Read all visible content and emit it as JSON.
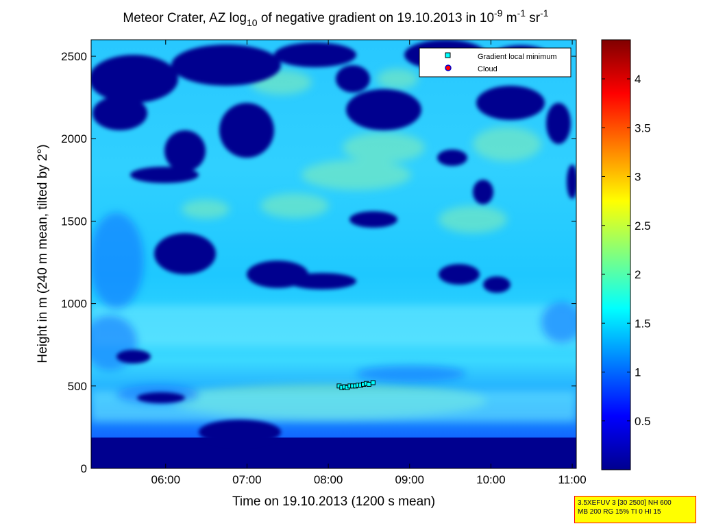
{
  "chart_data": {
    "type": "heatmap",
    "title": {
      "prefix": "Meteor Crater, AZ log",
      "subscript": "10",
      "middle": " of negative gradient on 19.10.2013 in 10",
      "sup1": "-9",
      "mid2": " m",
      "sup2": "-1",
      "mid3": " sr",
      "sup3": "-1"
    },
    "xlabel": "Time on 19.10.2013 (1200 s mean)",
    "ylabel": "Height in m (240 m mean, tilted by 2°)",
    "xlim": [
      "05:05",
      "11:03"
    ],
    "ylim": [
      0,
      2600
    ],
    "xticks": [
      "06:00",
      "07:00",
      "08:00",
      "09:00",
      "10:00",
      "11:00"
    ],
    "yticks": [
      0,
      500,
      1000,
      1500,
      2000,
      2500
    ],
    "colorbar": {
      "range": [
        0,
        4.4
      ],
      "ticks": [
        0.5,
        1,
        1.5,
        2,
        2.5,
        3,
        3.5,
        4
      ],
      "colormap": "jet"
    },
    "legend": {
      "placement": "top-right",
      "entries": [
        {
          "label": "Gradient local minimum",
          "marker": "square",
          "color": "#00ffff"
        },
        {
          "label": "Cloud",
          "marker": "circle",
          "color": "#ff0000"
        }
      ]
    },
    "gradient_local_minimum_points": [
      {
        "time": "08:08",
        "height": 500
      },
      {
        "time": "08:10",
        "height": 490
      },
      {
        "time": "08:12",
        "height": 495
      },
      {
        "time": "08:14",
        "height": 490
      },
      {
        "time": "08:16",
        "height": 500
      },
      {
        "time": "08:18",
        "height": 500
      },
      {
        "time": "08:20",
        "height": 500
      },
      {
        "time": "08:22",
        "height": 505
      },
      {
        "time": "08:24",
        "height": 505
      },
      {
        "time": "08:26",
        "height": 510
      },
      {
        "time": "08:28",
        "height": 515
      },
      {
        "time": "08:30",
        "height": 510
      },
      {
        "time": "08:33",
        "height": 520
      }
    ],
    "cloud_points": []
  },
  "info_box": {
    "line1": "3.5XEFUV 3 [30 2500] NH 600",
    "line2": "MB 200 RG 15% TI 0 HI 15"
  }
}
